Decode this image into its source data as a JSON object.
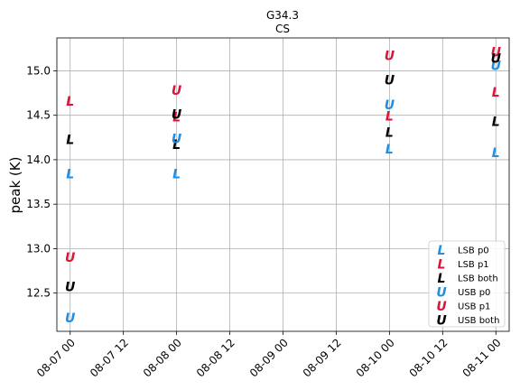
{
  "chart_data": {
    "type": "scatter",
    "title": "G34.3",
    "subtitle": "CS",
    "xlabel": "",
    "ylabel": "peak (K)",
    "xlim": [
      "2024-08-06T21:00",
      "2024-08-11T03:00"
    ],
    "ylim": [
      12.07,
      15.37
    ],
    "x_tick_labels": [
      "08-07 00",
      "08-07 12",
      "08-08 00",
      "08-08 12",
      "08-09 00",
      "08-09 12",
      "08-10 00",
      "08-10 12",
      "08-11 00"
    ],
    "y_tick_labels": [
      "12.5",
      "13.0",
      "13.5",
      "14.0",
      "14.5",
      "15.0"
    ],
    "grid": true,
    "legend_position": "lower-right",
    "x": [
      "08-07 00",
      "08-08 00",
      "08-10 00",
      "08-11 00"
    ],
    "series": [
      {
        "name": "LSB p0",
        "marker": "L",
        "color": "#1f8fe6",
        "values": [
          13.83,
          13.83,
          14.11,
          14.07
        ]
      },
      {
        "name": "LSB p1",
        "marker": "L",
        "color": "#dc143c",
        "values": [
          14.65,
          14.47,
          14.48,
          14.75
        ]
      },
      {
        "name": "LSB both",
        "marker": "L",
        "color": "#000000",
        "values": [
          14.22,
          14.16,
          14.3,
          14.42
        ]
      },
      {
        "name": "USB p0",
        "marker": "U",
        "color": "#1f8fe6",
        "values": [
          12.21,
          14.23,
          14.61,
          15.05
        ]
      },
      {
        "name": "USB p1",
        "marker": "U",
        "color": "#dc143c",
        "values": [
          12.89,
          14.77,
          15.16,
          15.2
        ]
      },
      {
        "name": "USB both",
        "marker": "U",
        "color": "#000000",
        "values": [
          12.56,
          14.5,
          14.89,
          15.13
        ]
      }
    ]
  }
}
